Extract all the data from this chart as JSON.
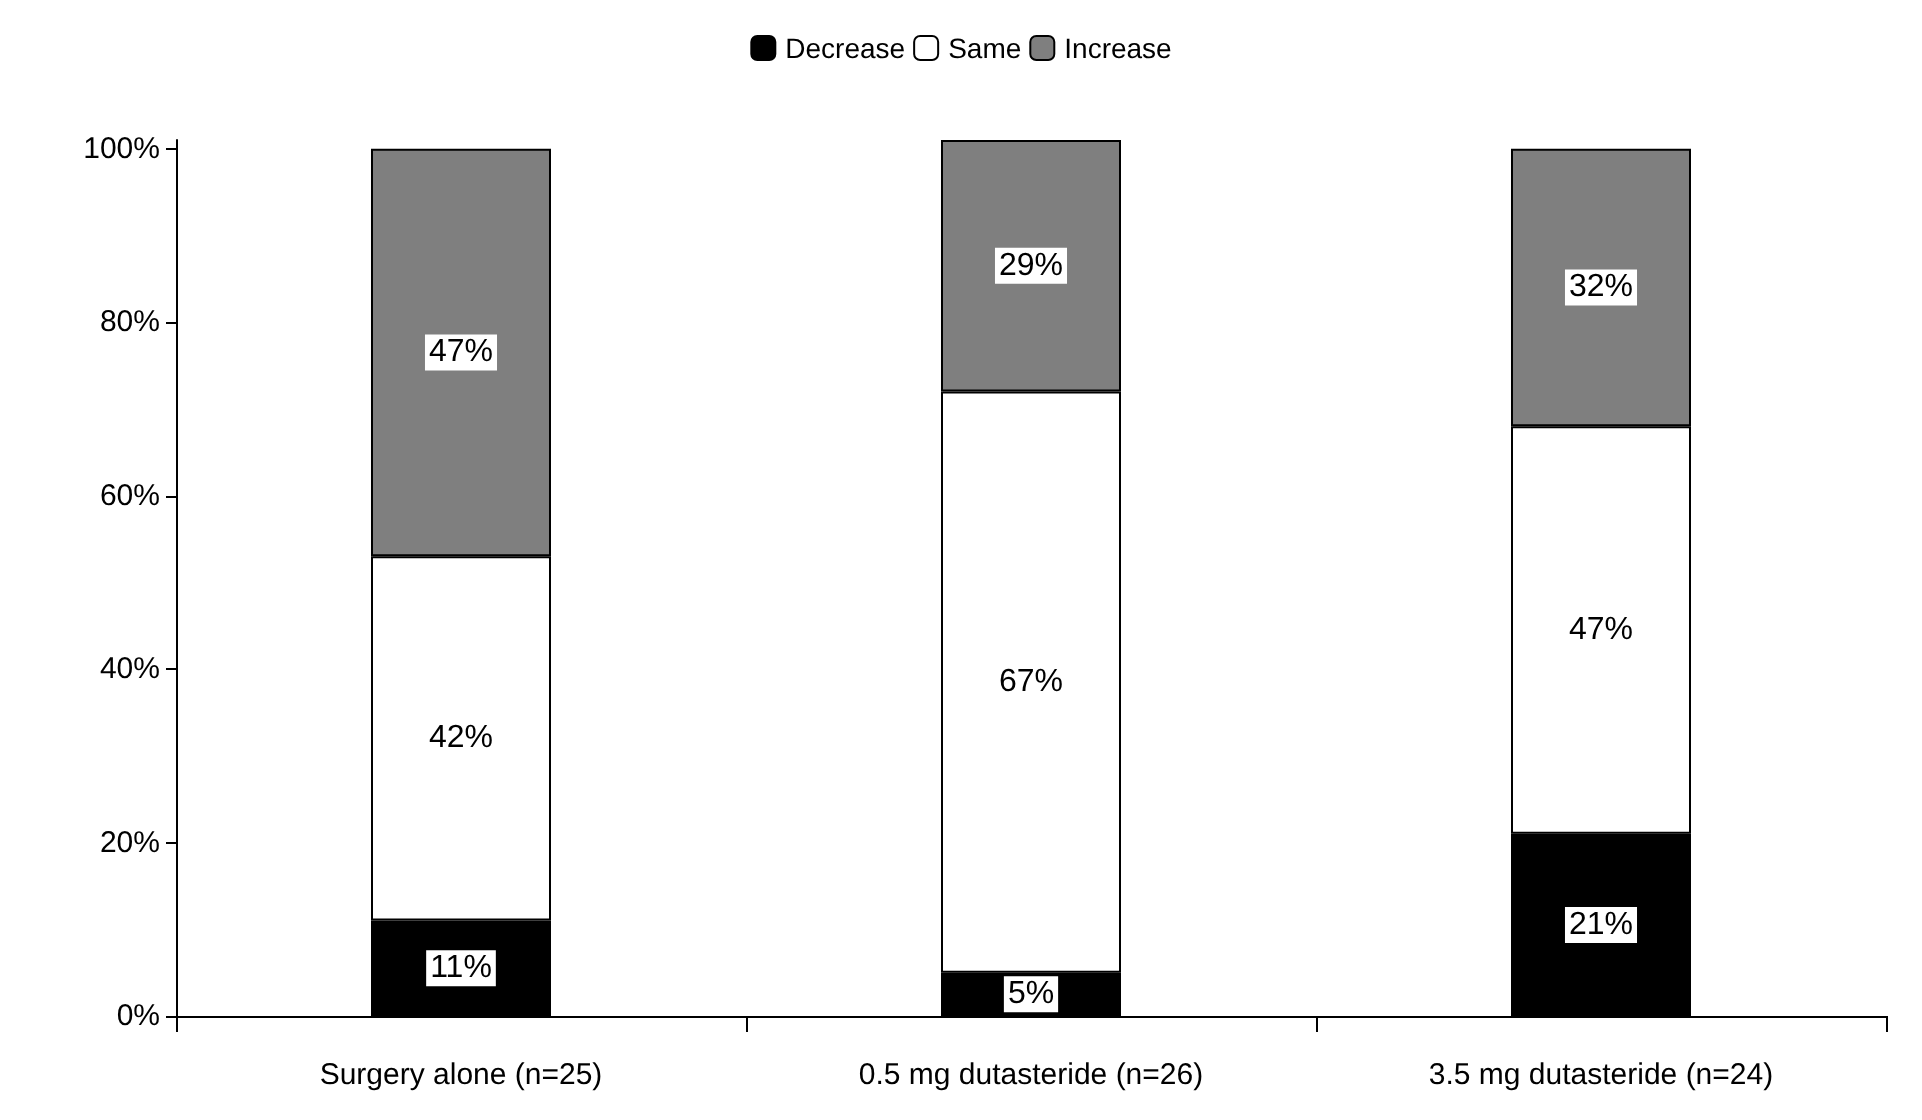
{
  "chart_data": {
    "type": "bar",
    "stacked": true,
    "categories": [
      "Surgery alone (n=25)",
      "0.5 mg dutasteride (n=26)",
      "3.5 mg dutasteride (n=24)"
    ],
    "series": [
      {
        "name": "Decrease",
        "color": "#000000",
        "values": [
          11,
          5,
          21
        ],
        "value_labels": [
          "11%",
          "5%",
          "21%"
        ]
      },
      {
        "name": "Same",
        "color": "#ffffff",
        "values": [
          42,
          67,
          47
        ],
        "value_labels": [
          "42%",
          "67%",
          "47%"
        ]
      },
      {
        "name": "Increase",
        "color": "#7f7f7f",
        "values": [
          47,
          29,
          32
        ],
        "value_labels": [
          "47%",
          "29%",
          "32%"
        ]
      }
    ],
    "ylim": [
      0,
      101
    ],
    "yticks": [
      {
        "value": 0,
        "label": "0%"
      },
      {
        "value": 20,
        "label": "20%"
      },
      {
        "value": 40,
        "label": "40%"
      },
      {
        "value": 60,
        "label": "60%"
      },
      {
        "value": 80,
        "label": "80%"
      },
      {
        "value": 100,
        "label": "100%"
      }
    ],
    "grid": false,
    "legend": "top"
  }
}
